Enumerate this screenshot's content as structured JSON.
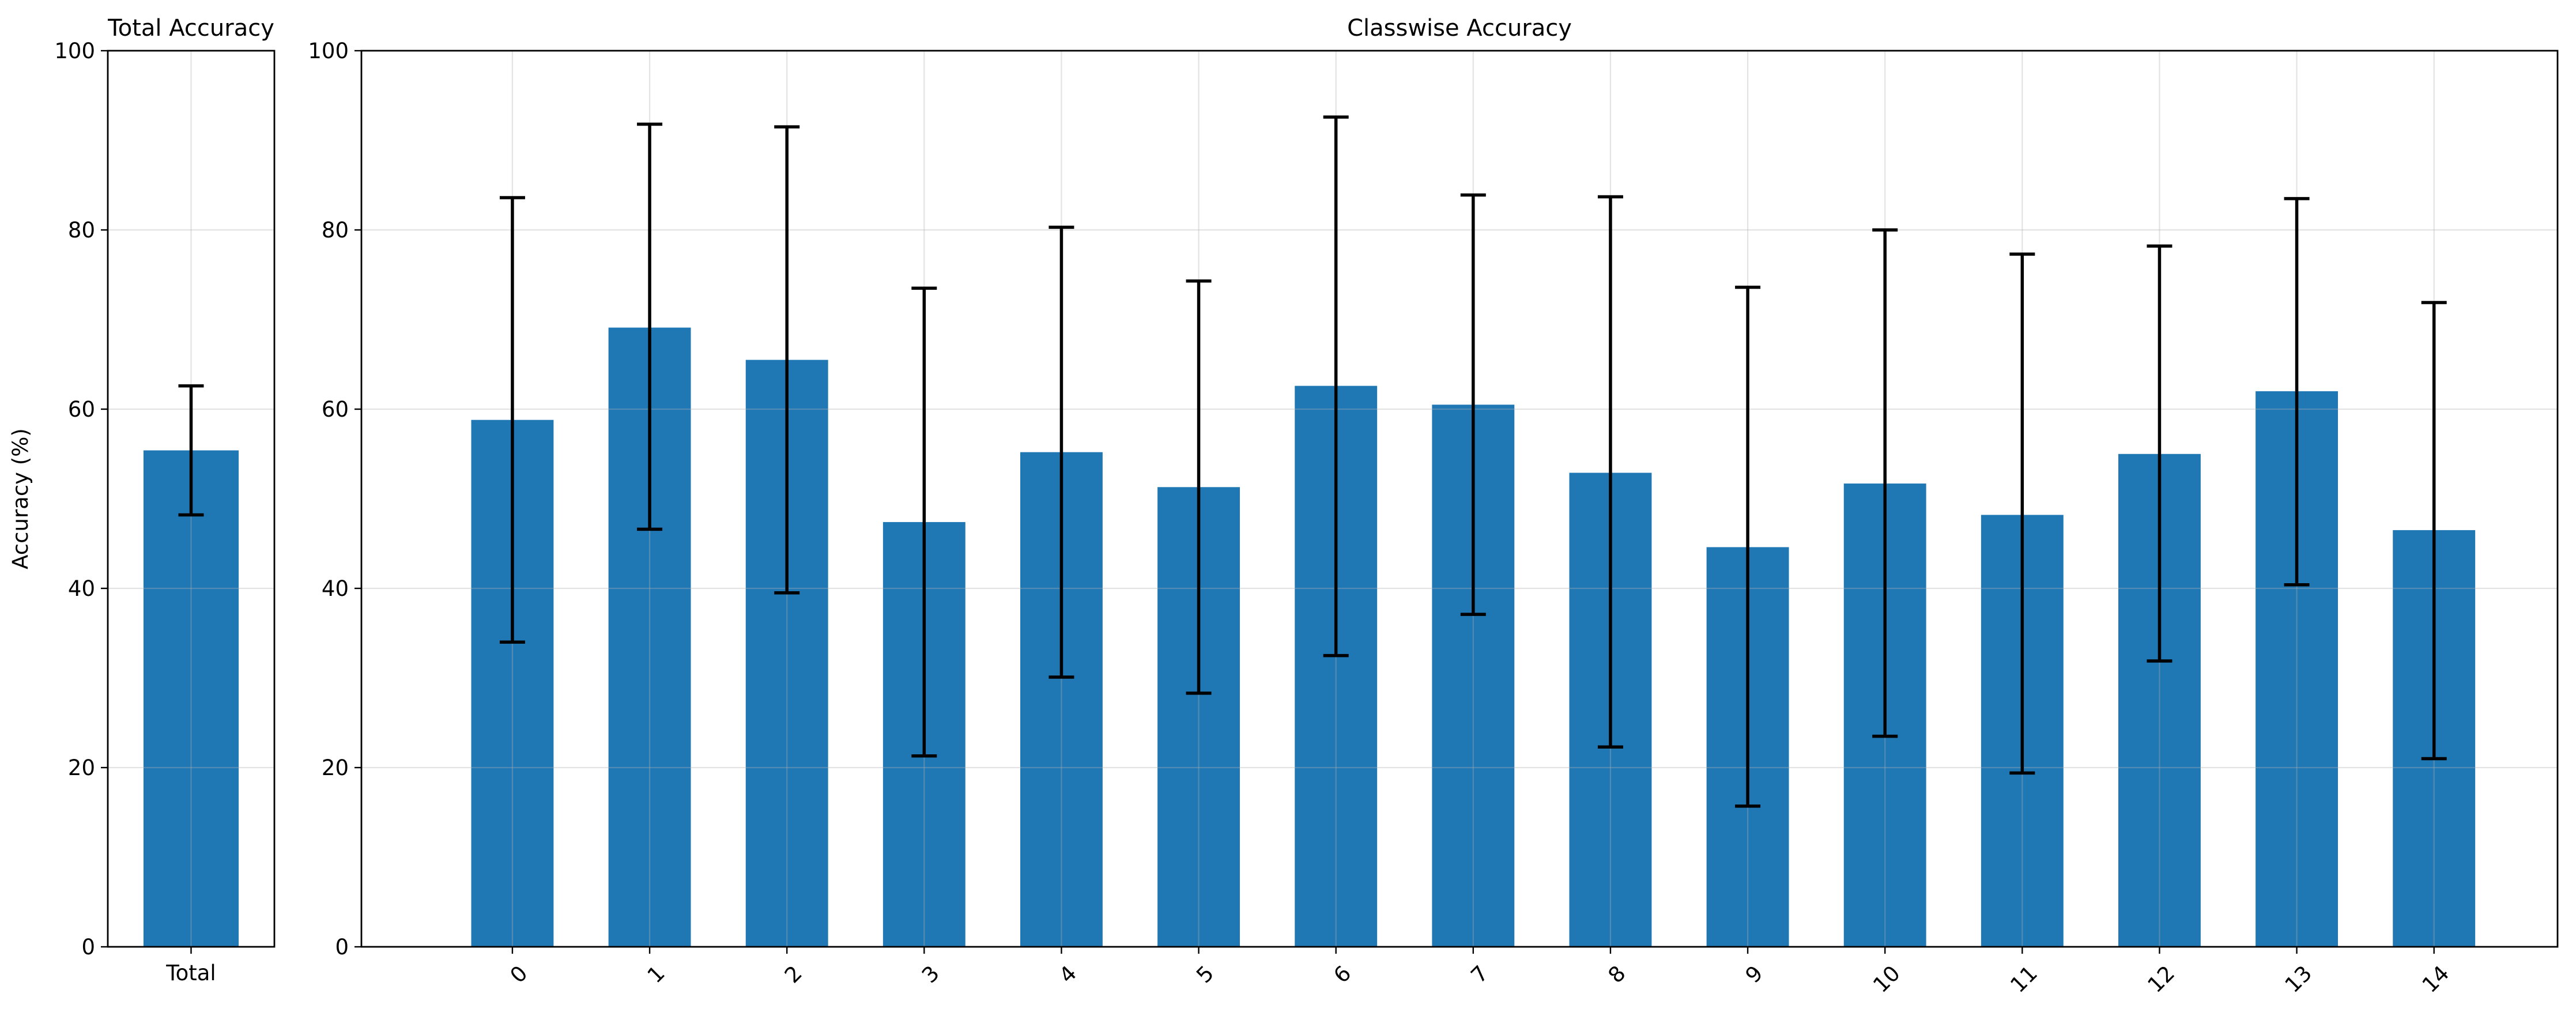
{
  "chart_data": [
    {
      "type": "bar",
      "title": "Total Accuracy",
      "ylabel": "Accuracy (%)",
      "categories": [
        "Total"
      ],
      "values": [
        55.4
      ],
      "error_low": [
        48.2
      ],
      "error_high": [
        62.6
      ],
      "ylim": [
        0,
        100
      ],
      "yticks": [
        "0",
        "20",
        "40",
        "60",
        "80",
        "100"
      ],
      "grid": true,
      "bar_color": "#1f77b4"
    },
    {
      "type": "bar",
      "title": "Classwise Accuracy",
      "categories": [
        "0",
        "1",
        "2",
        "3",
        "4",
        "5",
        "6",
        "7",
        "8",
        "9",
        "10",
        "11",
        "12",
        "13",
        "14"
      ],
      "values": [
        58.8,
        69.1,
        65.5,
        47.4,
        55.2,
        51.3,
        62.6,
        60.5,
        52.9,
        44.6,
        51.7,
        48.2,
        55.0,
        62.0,
        46.5
      ],
      "error_low": [
        34.0,
        46.6,
        39.5,
        21.3,
        30.1,
        28.3,
        32.5,
        37.1,
        22.3,
        15.7,
        23.5,
        19.4,
        31.9,
        40.4,
        21.0
      ],
      "error_high": [
        83.6,
        91.8,
        91.5,
        73.5,
        80.3,
        74.3,
        92.6,
        83.9,
        83.7,
        73.6,
        80.0,
        77.3,
        78.2,
        83.5,
        71.9
      ],
      "ylim": [
        0,
        100
      ],
      "yticks": [
        "0",
        "20",
        "40",
        "60",
        "80",
        "100"
      ],
      "grid": true,
      "bar_color": "#1f77b4"
    }
  ]
}
